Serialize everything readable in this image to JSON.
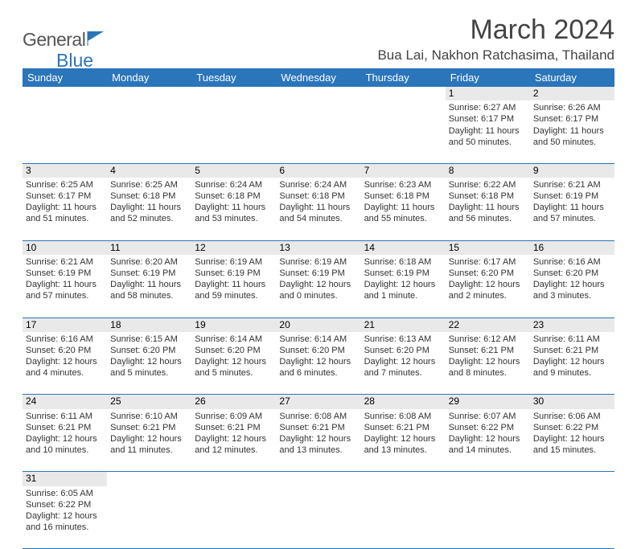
{
  "brand": {
    "text1": "General",
    "text2": "Blue"
  },
  "title": "March 2024",
  "location": "Bua Lai, Nakhon Ratchasima, Thailand",
  "weekdays": [
    "Sunday",
    "Monday",
    "Tuesday",
    "Wednesday",
    "Thursday",
    "Friday",
    "Saturday"
  ],
  "colors": {
    "accent": "#2b75bb",
    "dayband": "#e9e9e9",
    "bg": "#ffffff",
    "text": "#333333"
  },
  "typography": {
    "title_fontsize": 34,
    "header_fontsize": 13,
    "cell_fontsize": 11
  },
  "days": [
    {
      "n": 1,
      "sunrise": "6:27 AM",
      "sunset": "6:17 PM",
      "daylight": "11 hours and 50 minutes."
    },
    {
      "n": 2,
      "sunrise": "6:26 AM",
      "sunset": "6:17 PM",
      "daylight": "11 hours and 50 minutes."
    },
    {
      "n": 3,
      "sunrise": "6:25 AM",
      "sunset": "6:17 PM",
      "daylight": "11 hours and 51 minutes."
    },
    {
      "n": 4,
      "sunrise": "6:25 AM",
      "sunset": "6:18 PM",
      "daylight": "11 hours and 52 minutes."
    },
    {
      "n": 5,
      "sunrise": "6:24 AM",
      "sunset": "6:18 PM",
      "daylight": "11 hours and 53 minutes."
    },
    {
      "n": 6,
      "sunrise": "6:24 AM",
      "sunset": "6:18 PM",
      "daylight": "11 hours and 54 minutes."
    },
    {
      "n": 7,
      "sunrise": "6:23 AM",
      "sunset": "6:18 PM",
      "daylight": "11 hours and 55 minutes."
    },
    {
      "n": 8,
      "sunrise": "6:22 AM",
      "sunset": "6:18 PM",
      "daylight": "11 hours and 56 minutes."
    },
    {
      "n": 9,
      "sunrise": "6:21 AM",
      "sunset": "6:19 PM",
      "daylight": "11 hours and 57 minutes."
    },
    {
      "n": 10,
      "sunrise": "6:21 AM",
      "sunset": "6:19 PM",
      "daylight": "11 hours and 57 minutes."
    },
    {
      "n": 11,
      "sunrise": "6:20 AM",
      "sunset": "6:19 PM",
      "daylight": "11 hours and 58 minutes."
    },
    {
      "n": 12,
      "sunrise": "6:19 AM",
      "sunset": "6:19 PM",
      "daylight": "11 hours and 59 minutes."
    },
    {
      "n": 13,
      "sunrise": "6:19 AM",
      "sunset": "6:19 PM",
      "daylight": "12 hours and 0 minutes."
    },
    {
      "n": 14,
      "sunrise": "6:18 AM",
      "sunset": "6:19 PM",
      "daylight": "12 hours and 1 minute."
    },
    {
      "n": 15,
      "sunrise": "6:17 AM",
      "sunset": "6:20 PM",
      "daylight": "12 hours and 2 minutes."
    },
    {
      "n": 16,
      "sunrise": "6:16 AM",
      "sunset": "6:20 PM",
      "daylight": "12 hours and 3 minutes."
    },
    {
      "n": 17,
      "sunrise": "6:16 AM",
      "sunset": "6:20 PM",
      "daylight": "12 hours and 4 minutes."
    },
    {
      "n": 18,
      "sunrise": "6:15 AM",
      "sunset": "6:20 PM",
      "daylight": "12 hours and 5 minutes."
    },
    {
      "n": 19,
      "sunrise": "6:14 AM",
      "sunset": "6:20 PM",
      "daylight": "12 hours and 5 minutes."
    },
    {
      "n": 20,
      "sunrise": "6:14 AM",
      "sunset": "6:20 PM",
      "daylight": "12 hours and 6 minutes."
    },
    {
      "n": 21,
      "sunrise": "6:13 AM",
      "sunset": "6:20 PM",
      "daylight": "12 hours and 7 minutes."
    },
    {
      "n": 22,
      "sunrise": "6:12 AM",
      "sunset": "6:21 PM",
      "daylight": "12 hours and 8 minutes."
    },
    {
      "n": 23,
      "sunrise": "6:11 AM",
      "sunset": "6:21 PM",
      "daylight": "12 hours and 9 minutes."
    },
    {
      "n": 24,
      "sunrise": "6:11 AM",
      "sunset": "6:21 PM",
      "daylight": "12 hours and 10 minutes."
    },
    {
      "n": 25,
      "sunrise": "6:10 AM",
      "sunset": "6:21 PM",
      "daylight": "12 hours and 11 minutes."
    },
    {
      "n": 26,
      "sunrise": "6:09 AM",
      "sunset": "6:21 PM",
      "daylight": "12 hours and 12 minutes."
    },
    {
      "n": 27,
      "sunrise": "6:08 AM",
      "sunset": "6:21 PM",
      "daylight": "12 hours and 13 minutes."
    },
    {
      "n": 28,
      "sunrise": "6:08 AM",
      "sunset": "6:21 PM",
      "daylight": "12 hours and 13 minutes."
    },
    {
      "n": 29,
      "sunrise": "6:07 AM",
      "sunset": "6:22 PM",
      "daylight": "12 hours and 14 minutes."
    },
    {
      "n": 30,
      "sunrise": "6:06 AM",
      "sunset": "6:22 PM",
      "daylight": "12 hours and 15 minutes."
    },
    {
      "n": 31,
      "sunrise": "6:05 AM",
      "sunset": "6:22 PM",
      "daylight": "12 hours and 16 minutes."
    }
  ],
  "labels": {
    "sunrise": "Sunrise: ",
    "sunset": "Sunset: ",
    "daylight": "Daylight: "
  },
  "layout": {
    "first_weekday_index": 5,
    "weeks": 6
  }
}
